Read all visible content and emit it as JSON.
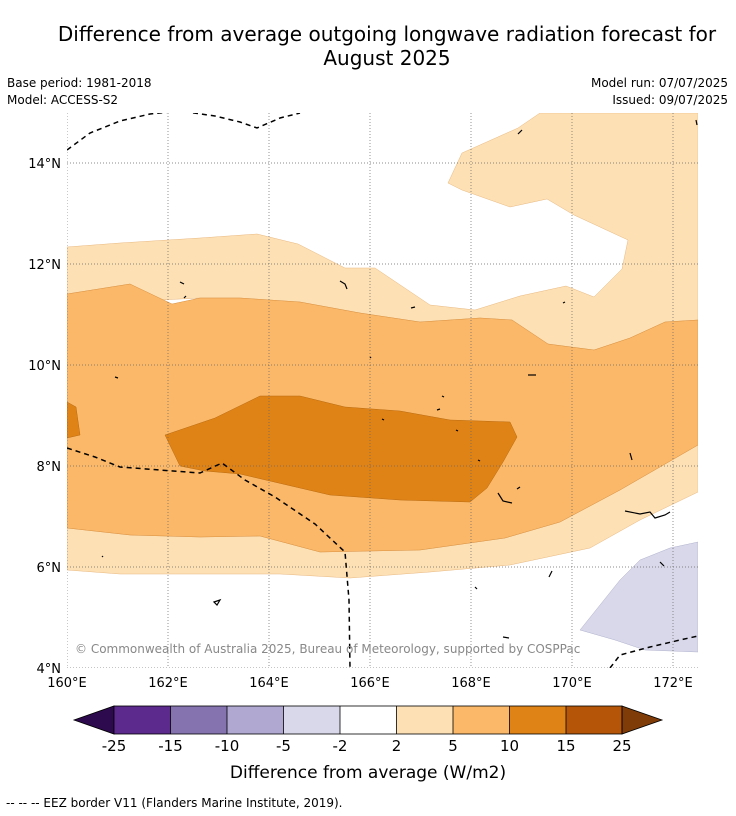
{
  "header": {
    "title_line1": "Difference from average outgoing longwave radiation forecast for",
    "title_line2": "August 2025",
    "base_period": "Base period: 1981-2018",
    "model": "Model: ACCESS-S2",
    "model_run": "Model run: 07/07/2025",
    "issued": "Issued: 09/07/2025"
  },
  "map": {
    "lon_labels": [
      "160°E",
      "162°E",
      "164°E",
      "166°E",
      "168°E",
      "170°E",
      "172°E"
    ],
    "lat_labels": [
      "14°N",
      "12°N",
      "10°N",
      "8°N",
      "6°N",
      "4°N"
    ],
    "watermark": "© Commonwealth of Australia 2025, Bureau of Meteorology, supported by COSPPac"
  },
  "colorbar": {
    "ticks": [
      "-25",
      "-15",
      "-10",
      "-5",
      "-2",
      "2",
      "5",
      "10",
      "15",
      "25"
    ],
    "label": "Difference from average (W/m2)",
    "colors": {
      "below_-25": "#2d0a4e",
      "-25_-15": "#5b2a8c",
      "-15_-10": "#8573b0",
      "-10_-5": "#b1a8d2",
      "-5_-2": "#d8d8ea",
      "-2_2": "#ffffff",
      "2_5": "#fde0b4",
      "5_10": "#fbb868",
      "10_15": "#e08316",
      "15_25": "#b45508",
      "above_25": "#7f3b08"
    }
  },
  "footer": {
    "legend": "--  --  -- EEZ border V11 (Flanders Marine Institute, 2019)."
  }
}
